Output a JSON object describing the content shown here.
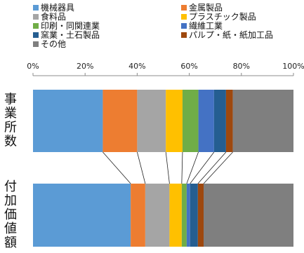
{
  "chart_data": {
    "type": "bar",
    "orientation": "horizontal",
    "stacking": "percent",
    "x_axis": {
      "ticks": [
        0,
        20,
        40,
        60,
        80,
        100
      ],
      "tick_labels": [
        "0%",
        "20%",
        "40%",
        "60%",
        "80%",
        "100%"
      ],
      "range": [
        0,
        100
      ],
      "position": "top"
    },
    "grid": false,
    "legend_position": "top",
    "connectors": true,
    "categories": [
      "事業所数",
      "付加価値額"
    ],
    "series": [
      {
        "name": "機械器具",
        "color": "#5b9bd5",
        "values": [
          26.8,
          37.5
        ]
      },
      {
        "name": "金属製品",
        "color": "#ed7d31",
        "values": [
          13.2,
          5.6
        ]
      },
      {
        "name": "食料品",
        "color": "#a5a5a5",
        "values": [
          11.0,
          9.3
        ]
      },
      {
        "name": "プラスチック製品",
        "color": "#ffc000",
        "values": [
          6.4,
          4.7
        ]
      },
      {
        "name": "印刷・同関連業",
        "color": "#70ad47",
        "values": [
          6.1,
          1.9
        ]
      },
      {
        "name": "繊維工業",
        "color": "#4472c4",
        "values": [
          6.0,
          1.3
        ]
      },
      {
        "name": "窯業・土石製品",
        "color": "#255e91",
        "values": [
          4.6,
          3.0
        ]
      },
      {
        "name": "パルプ・紙・紙加工品",
        "color": "#9e480e",
        "values": [
          2.6,
          2.2
        ]
      },
      {
        "name": "その他",
        "color": "#7f7f7f",
        "values": [
          23.3,
          34.5
        ]
      }
    ]
  }
}
